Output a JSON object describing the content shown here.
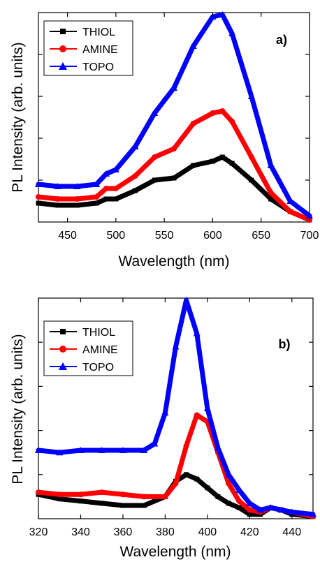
{
  "chart_data": [
    {
      "type": "line",
      "panel_label": "a)",
      "xlabel": "Wavelength (nm)",
      "ylabel": "PL Intensity (arb. units)",
      "xlim": [
        420,
        700
      ],
      "ylim": [
        0,
        100
      ],
      "xticks": [
        450,
        500,
        550,
        600,
        650,
        700
      ],
      "yticks_labeled": false,
      "legend_position": "top-left",
      "series": [
        {
          "name": "THIOL",
          "color": "#000000",
          "marker": "square",
          "x": [
            420,
            440,
            460,
            480,
            490,
            500,
            520,
            540,
            560,
            580,
            600,
            610,
            620,
            640,
            660,
            680,
            700
          ],
          "y": [
            9,
            8,
            8,
            9,
            11,
            11,
            15,
            20,
            21,
            27,
            29,
            31,
            28,
            20,
            11,
            5,
            1
          ]
        },
        {
          "name": "AMINE",
          "color": "#ff0000",
          "marker": "circle",
          "x": [
            420,
            440,
            460,
            480,
            490,
            500,
            520,
            540,
            560,
            580,
            600,
            610,
            620,
            640,
            660,
            680,
            700
          ],
          "y": [
            12,
            11,
            11,
            12,
            16,
            16,
            22,
            31,
            35,
            47,
            52,
            53,
            48,
            31,
            14,
            5,
            1
          ]
        },
        {
          "name": "TOPO",
          "color": "#0000ff",
          "marker": "triangle",
          "x": [
            420,
            440,
            460,
            480,
            490,
            500,
            520,
            540,
            560,
            580,
            600,
            610,
            620,
            640,
            660,
            680,
            700
          ],
          "y": [
            18,
            17,
            17,
            18,
            23,
            25,
            36,
            52,
            64,
            84,
            98,
            99,
            90,
            60,
            27,
            10,
            3
          ]
        }
      ]
    },
    {
      "type": "line",
      "panel_label": "b)",
      "xlabel": "Wavelength (nm)",
      "ylabel": "PL Intensity (arb. units)",
      "xlim": [
        320,
        450
      ],
      "ylim": [
        0,
        100
      ],
      "xticks": [
        320,
        340,
        360,
        380,
        400,
        420,
        440
      ],
      "yticks_labeled": false,
      "legend_position": "top-left",
      "series": [
        {
          "name": "THIOL",
          "color": "#000000",
          "marker": "square",
          "x": [
            320,
            330,
            340,
            350,
            360,
            370,
            380,
            385,
            390,
            395,
            400,
            405,
            410,
            415,
            420,
            425,
            430,
            435,
            440,
            450
          ],
          "y": [
            11,
            9,
            8,
            7,
            6,
            6,
            10,
            17,
            20,
            18,
            14,
            10,
            7,
            5,
            2,
            2,
            5,
            4,
            2,
            1
          ]
        },
        {
          "name": "AMINE",
          "color": "#ff0000",
          "marker": "circle",
          "x": [
            320,
            330,
            340,
            350,
            360,
            370,
            380,
            385,
            390,
            395,
            400,
            405,
            410,
            415,
            420,
            425,
            430,
            435,
            440,
            450
          ],
          "y": [
            12,
            11,
            11,
            12,
            11,
            10,
            10,
            16,
            33,
            47,
            44,
            30,
            16,
            8,
            4,
            3,
            5,
            4,
            3,
            1
          ]
        },
        {
          "name": "TOPO",
          "color": "#0000ff",
          "marker": "triangle",
          "x": [
            320,
            330,
            340,
            350,
            360,
            370,
            375,
            380,
            385,
            390,
            395,
            400,
            405,
            410,
            415,
            420,
            425,
            430,
            435,
            440,
            450
          ],
          "y": [
            31,
            30,
            31,
            31,
            31,
            31,
            34,
            48,
            78,
            99,
            84,
            50,
            32,
            20,
            13,
            7,
            4,
            5,
            4,
            3,
            2
          ]
        }
      ]
    }
  ]
}
